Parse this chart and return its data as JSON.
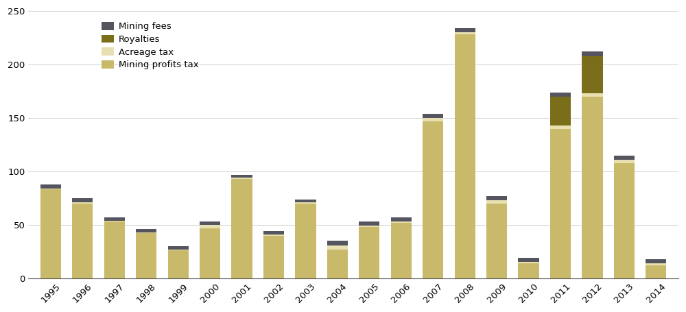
{
  "years": [
    "1995",
    "1996",
    "1997",
    "1998",
    "1999",
    "2000",
    "2001",
    "2002",
    "2003",
    "2004",
    "2005",
    "2006",
    "2007",
    "2008",
    "2009",
    "2010",
    "2011",
    "2012",
    "2013",
    "2014"
  ],
  "mining_profits_tax": [
    83,
    70,
    53,
    42,
    26,
    47,
    93,
    40,
    70,
    27,
    48,
    52,
    147,
    228,
    70,
    14,
    140,
    170,
    108,
    12
  ],
  "acreage_tax": [
    1,
    1,
    1,
    1,
    1,
    3,
    1,
    1,
    1,
    4,
    1,
    1,
    3,
    2,
    3,
    1,
    3,
    3,
    3,
    2
  ],
  "royalties": [
    0,
    0,
    0,
    0,
    0,
    0,
    0,
    0,
    0,
    0,
    0,
    0,
    0,
    0,
    0,
    0,
    27,
    35,
    0,
    0
  ],
  "mining_fees": [
    4,
    4,
    3,
    3,
    3,
    3,
    3,
    3,
    3,
    4,
    4,
    4,
    4,
    4,
    4,
    4,
    4,
    4,
    4,
    4
  ],
  "colors": {
    "mining_profits_tax": "#c8b96b",
    "acreage_tax": "#e8e0b0",
    "royalties": "#7a6e1a",
    "mining_fees": "#555560"
  },
  "ylim": [
    0,
    250
  ],
  "yticks": [
    0,
    50,
    100,
    150,
    200,
    250
  ],
  "background_color": "#ffffff",
  "bar_width": 0.65
}
